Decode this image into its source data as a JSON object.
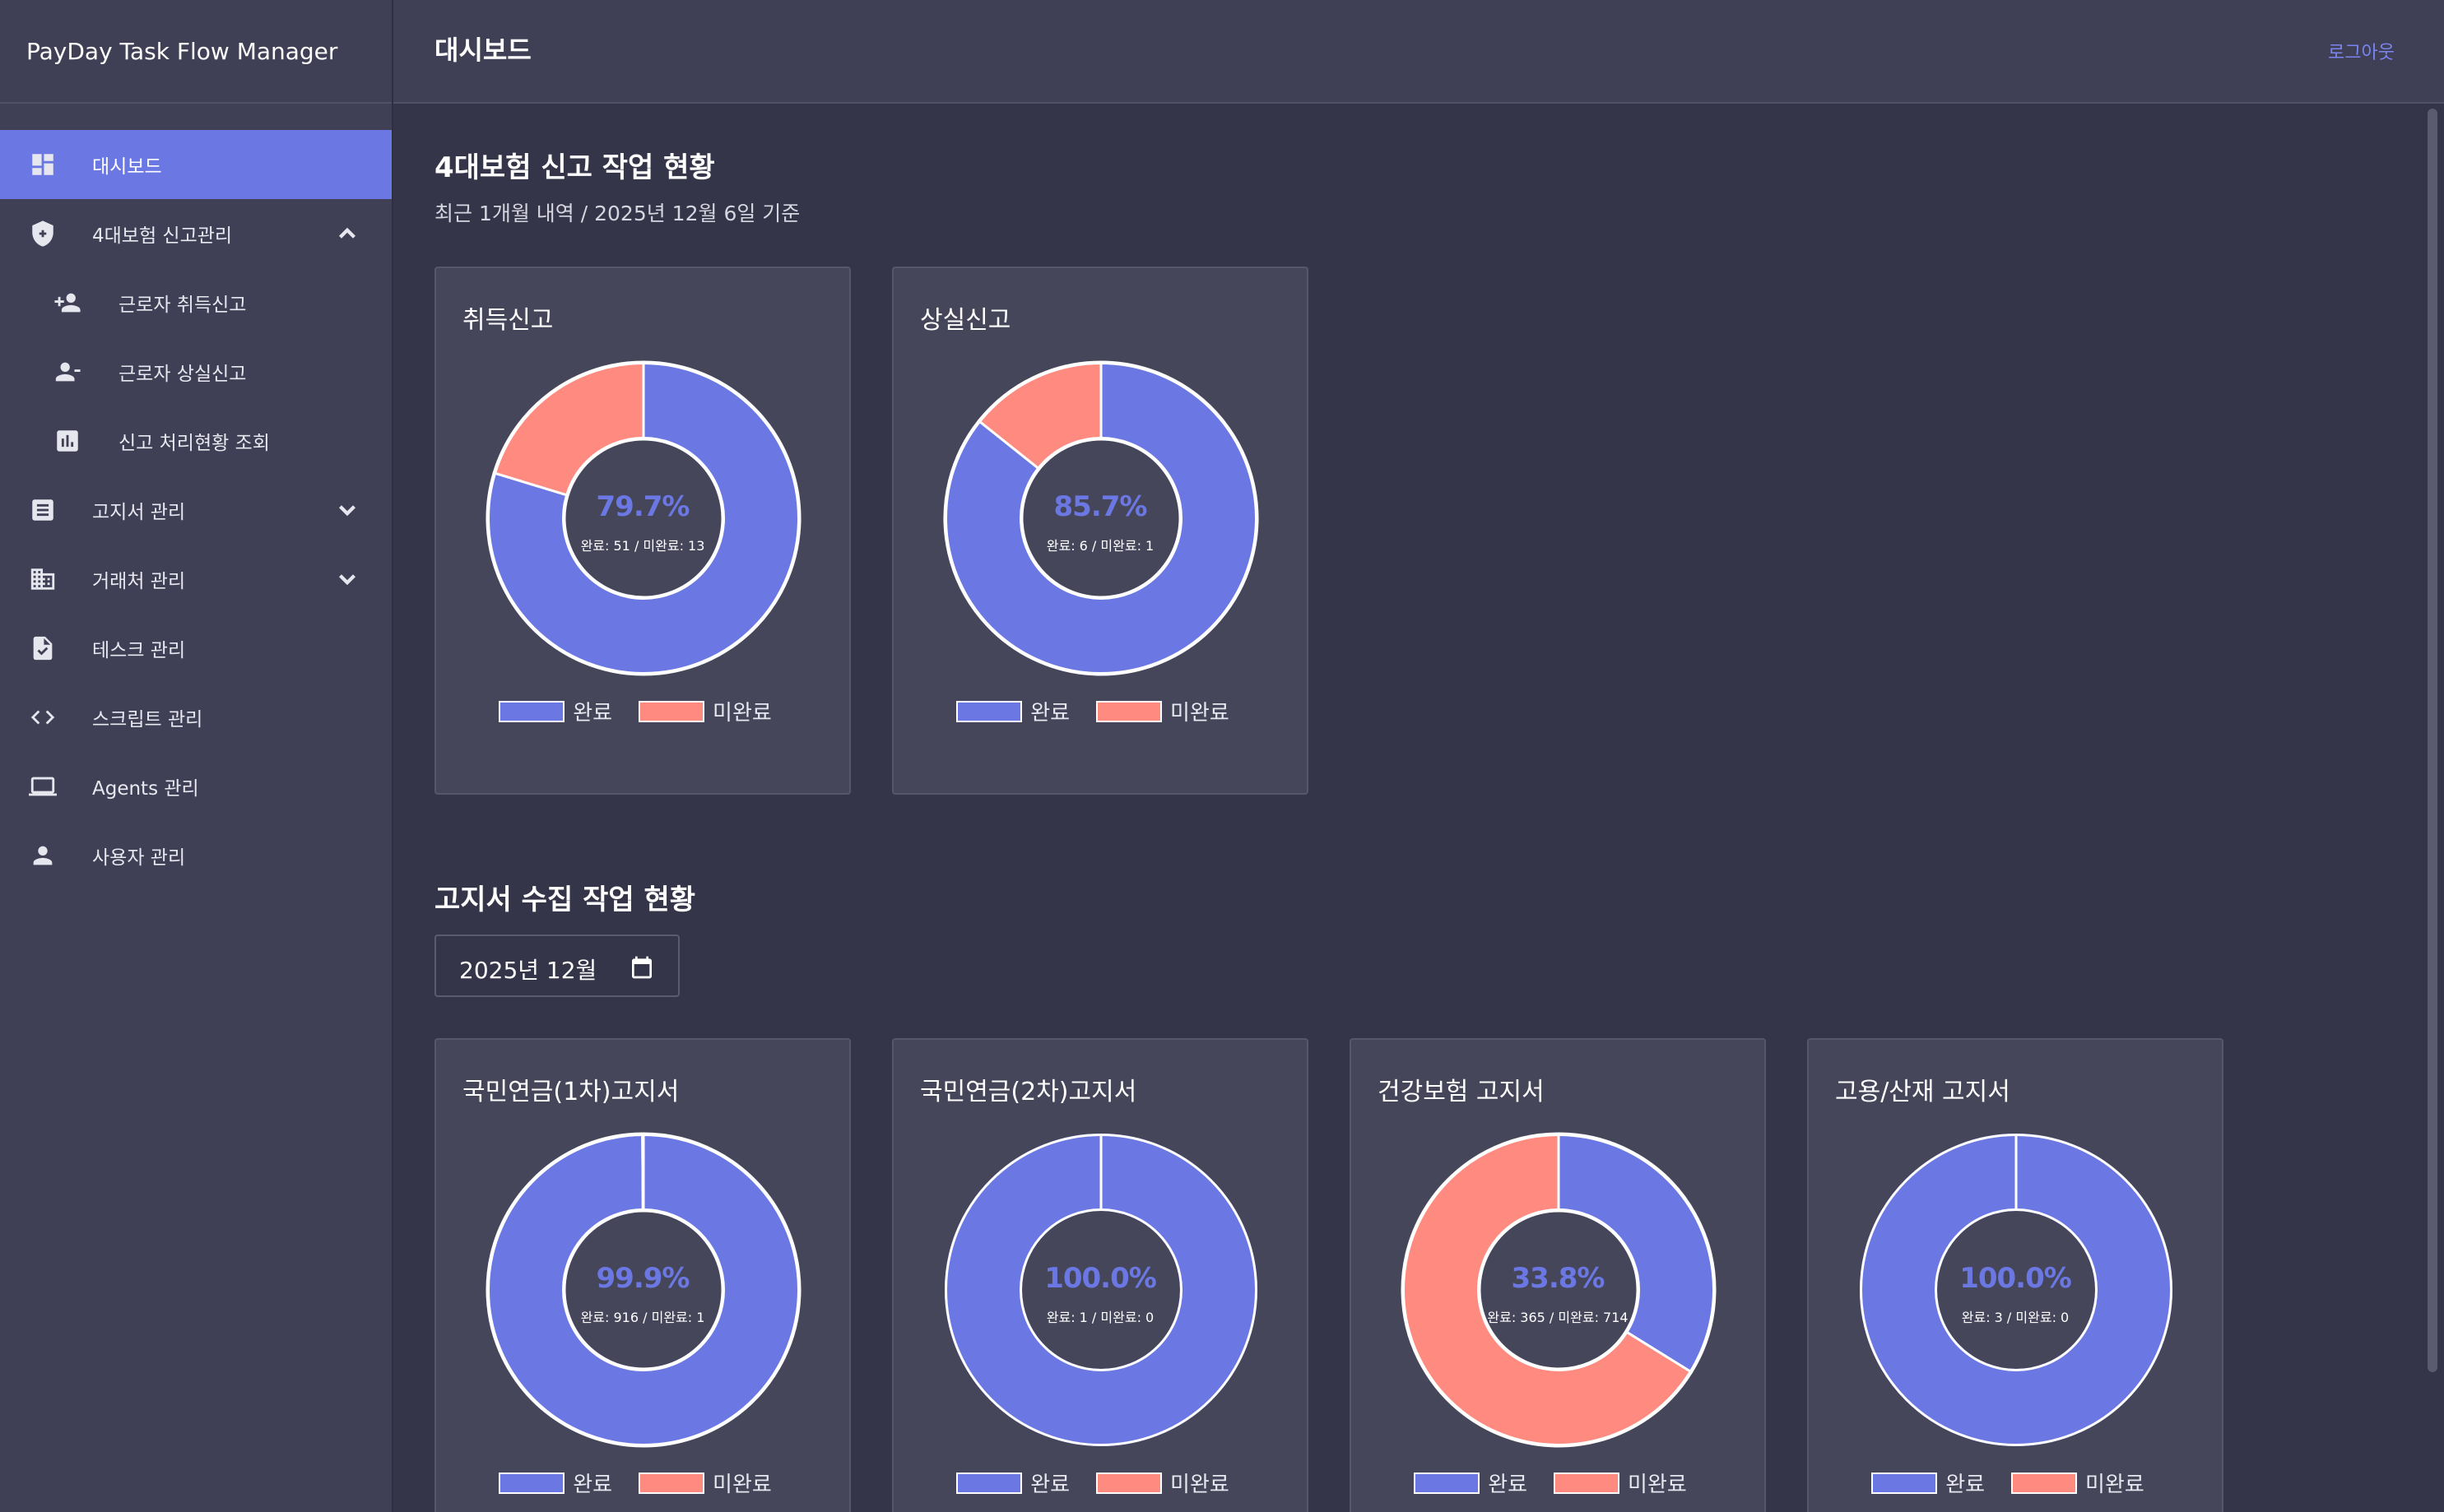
{
  "app": {
    "title": "PayDay Task Flow Manager"
  },
  "header": {
    "title": "대시보드",
    "logout_label": "로그아웃"
  },
  "sidebar": {
    "items": [
      {
        "label": "대시보드",
        "icon": "dashboard-icon"
      },
      {
        "label": "4대보험 신고관리",
        "icon": "shield-icon"
      },
      {
        "label": "근로자 취득신고",
        "icon": "person-add-icon"
      },
      {
        "label": "근로자 상실신고",
        "icon": "person-remove-icon"
      },
      {
        "label": "신고 처리현황 조회",
        "icon": "bar-chart-icon"
      },
      {
        "label": "고지서 관리",
        "icon": "list-icon"
      },
      {
        "label": "거래처 관리",
        "icon": "building-icon"
      },
      {
        "label": "테스크 관리",
        "icon": "task-icon"
      },
      {
        "label": "스크립트 관리",
        "icon": "code-icon"
      },
      {
        "label": "Agents 관리",
        "icon": "laptop-icon"
      },
      {
        "label": "사용자 관리",
        "icon": "person-icon"
      }
    ]
  },
  "section1": {
    "title": "4대보험 신고 작업 현황",
    "subtitle": "최근 1개월 내역 / 2025년 12월 6일 기준"
  },
  "section2": {
    "title": "고지서 수집 작업 현황",
    "month_value": "2025년 12월"
  },
  "legend": {
    "done": "완료",
    "undone": "미완료"
  },
  "colors": {
    "done": "#6b78e3",
    "undone": "#ff8a80",
    "accent": "#6b78e3"
  },
  "chart_data": [
    {
      "type": "pie",
      "title": "취득신고",
      "categories": [
        "완료",
        "미완료"
      ],
      "values": [
        51,
        13
      ],
      "center_label": "79.7%",
      "counts_label": "완료: 51 / 미완료: 13"
    },
    {
      "type": "pie",
      "title": "상실신고",
      "categories": [
        "완료",
        "미완료"
      ],
      "values": [
        6,
        1
      ],
      "center_label": "85.7%",
      "counts_label": "완료: 6 / 미완료: 1"
    },
    {
      "type": "pie",
      "title": "국민연금(1차)고지서",
      "categories": [
        "완료",
        "미완료"
      ],
      "values": [
        916,
        1
      ],
      "center_label": "99.9%",
      "counts_label": "완료: 916 / 미완료: 1"
    },
    {
      "type": "pie",
      "title": "국민연금(2차)고지서",
      "categories": [
        "완료",
        "미완료"
      ],
      "values": [
        1,
        0
      ],
      "center_label": "100.0%",
      "counts_label": "완료: 1 / 미완료: 0"
    },
    {
      "type": "pie",
      "title": "건강보험 고지서",
      "categories": [
        "완료",
        "미완료"
      ],
      "values": [
        365,
        714
      ],
      "center_label": "33.8%",
      "counts_label": "완료: 365 / 미완료: 714"
    },
    {
      "type": "pie",
      "title": "고용/산재 고지서",
      "categories": [
        "완료",
        "미완료"
      ],
      "values": [
        3,
        0
      ],
      "center_label": "100.0%",
      "counts_label": "완료: 3 / 미완료: 0"
    }
  ]
}
